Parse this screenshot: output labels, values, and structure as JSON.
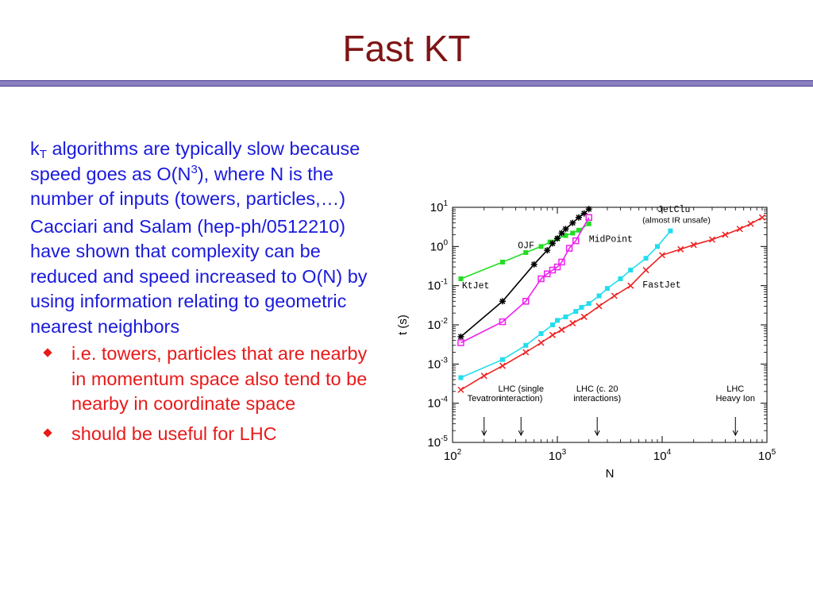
{
  "slide": {
    "title": "Fast KT"
  },
  "body": {
    "p1_k": "k",
    "p1_sub": "T",
    "p1_a": " algorithms are typically slow because speed goes as O(N",
    "p1_sup": "3",
    "p1_b": "), where N is the number of inputs (towers, particles,…)",
    "p2": "Cacciari and Salam (hep-ph/0512210) have shown that complexity can be reduced and speed increased to O(N) by using information relating to geometric nearest neighbors",
    "bullets": [
      "i.e. towers, particles that are nearby in momentum space also tend to be nearby in coordinate space",
      "should be useful for LHC"
    ]
  },
  "colors": {
    "title": "#7f1414",
    "body_text": "#1a1add",
    "bullet_text": "#e81a1a",
    "rule": "#8a7fc0"
  },
  "chart_data": {
    "type": "line",
    "xlabel": "N",
    "ylabel": "t (s)",
    "xscale": "log",
    "yscale": "log",
    "xlim": [
      100,
      100000
    ],
    "ylim": [
      1e-05,
      10
    ],
    "xticks": [
      {
        "value": 100,
        "base": "10",
        "exp": "2"
      },
      {
        "value": 1000,
        "base": "10",
        "exp": "3"
      },
      {
        "value": 10000,
        "base": "10",
        "exp": "4"
      },
      {
        "value": 100000,
        "base": "10",
        "exp": "5"
      }
    ],
    "yticks": [
      {
        "value": 10,
        "base": "10",
        "exp": "1"
      },
      {
        "value": 1,
        "base": "10",
        "exp": "0"
      },
      {
        "value": 0.1,
        "base": "10",
        "exp": "-1"
      },
      {
        "value": 0.01,
        "base": "10",
        "exp": "-2"
      },
      {
        "value": 0.001,
        "base": "10",
        "exp": "-3"
      },
      {
        "value": 0.0001,
        "base": "10",
        "exp": "-4"
      },
      {
        "value": 1e-05,
        "base": "10",
        "exp": "-5"
      }
    ],
    "series": [
      {
        "name": "OJF",
        "color": "#22dd22",
        "marker": "filled-square",
        "x": [
          120,
          300,
          500,
          700,
          850,
          1000,
          1200,
          1400,
          1600,
          2000
        ],
        "y": [
          0.15,
          0.4,
          0.7,
          1.0,
          1.3,
          1.6,
          1.9,
          2.2,
          2.6,
          3.8
        ]
      },
      {
        "name": "KtJet",
        "color": "#000000",
        "marker": "star",
        "x": [
          120,
          300,
          600,
          800,
          900,
          1000,
          1100,
          1200,
          1400,
          1600,
          1800,
          2000
        ],
        "y": [
          0.005,
          0.04,
          0.35,
          0.8,
          1.2,
          1.6,
          2.2,
          2.8,
          4.0,
          5.5,
          7.0,
          9.0
        ]
      },
      {
        "name": "MidPoint",
        "color": "#ee22ee",
        "marker": "open-square",
        "x": [
          120,
          300,
          500,
          700,
          800,
          900,
          1000,
          1100,
          1300,
          1500,
          2000
        ],
        "y": [
          0.0035,
          0.012,
          0.04,
          0.15,
          0.2,
          0.25,
          0.3,
          0.4,
          0.9,
          1.4,
          5.5
        ]
      },
      {
        "name": "JetClu",
        "color": "#22ddee",
        "marker": "filled-square",
        "x": [
          120,
          300,
          500,
          700,
          900,
          1000,
          1200,
          1500,
          1700,
          2000,
          2500,
          3000,
          4000,
          5000,
          7000,
          9000,
          12000
        ],
        "y": [
          0.00045,
          0.0013,
          0.003,
          0.006,
          0.01,
          0.013,
          0.016,
          0.022,
          0.028,
          0.035,
          0.055,
          0.085,
          0.15,
          0.25,
          0.5,
          1.0,
          2.5
        ]
      },
      {
        "name": "FastJet",
        "color": "#ee2222",
        "marker": "cross",
        "x": [
          120,
          200,
          300,
          500,
          700,
          900,
          1100,
          1400,
          1800,
          2500,
          3500,
          5000,
          7000,
          10000,
          15000,
          20000,
          30000,
          40000,
          55000,
          70000,
          90000
        ],
        "y": [
          0.00022,
          0.0005,
          0.0009,
          0.002,
          0.0035,
          0.0055,
          0.0075,
          0.011,
          0.016,
          0.03,
          0.055,
          0.1,
          0.25,
          0.6,
          0.85,
          1.1,
          1.5,
          2.0,
          2.8,
          3.8,
          5.5
        ]
      }
    ],
    "series_labels": [
      {
        "text": "OJF",
        "x": 420,
        "y": 0.9
      },
      {
        "text": "KtJet",
        "x": 123,
        "y": 0.085
      },
      {
        "text": "MidPoint",
        "x": 2000,
        "y": 1.3
      },
      {
        "text": "JetClu",
        "x": 9000,
        "y": 7.5
      },
      {
        "text": "(almost IR unsafe)",
        "x": 9000,
        "y": 4.0
      },
      {
        "text": "FastJet",
        "x": 6500,
        "y": 0.09
      }
    ],
    "annotations": [
      {
        "lines": [
          "Tevatron"
        ],
        "x": 200
      },
      {
        "lines": [
          "LHC (single",
          "interaction)"
        ],
        "x": 450
      },
      {
        "lines": [
          "LHC (c. 20",
          "interactions)"
        ],
        "x": 2400
      },
      {
        "lines": [
          "LHC",
          "Heavy Ion"
        ],
        "x": 50000
      }
    ]
  }
}
